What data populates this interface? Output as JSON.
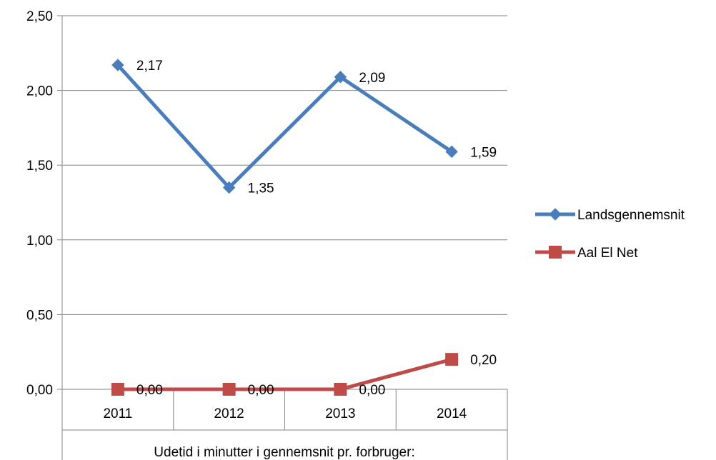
{
  "chart_data": {
    "type": "line",
    "categories": [
      "2011",
      "2012",
      "2013",
      "2014"
    ],
    "series": [
      {
        "name": "Landsgennemsnit",
        "color": "#4a7ebb",
        "marker": "diamond",
        "values": [
          2.17,
          1.35,
          2.09,
          1.59
        ],
        "labels": [
          "2,17",
          "1,35",
          "2,09",
          "1,59"
        ]
      },
      {
        "name": "Aal El Net",
        "color": "#be4b48",
        "marker": "square",
        "values": [
          0.0,
          0.0,
          0.0,
          0.2
        ],
        "labels": [
          "0,00",
          "0,00",
          "0,00",
          "0,20"
        ]
      }
    ],
    "y_ticks": [
      0.0,
      0.5,
      1.0,
      1.5,
      2.0,
      2.5
    ],
    "y_tick_labels": [
      "0,00",
      "0,50",
      "1,00",
      "1,50",
      "2,00",
      "2,50"
    ],
    "ylim": [
      0,
      2.5
    ],
    "xlabel": "Udetid i minutter i gennemsnit pr. forbruger:",
    "ylabel": "",
    "title": "",
    "grid": true,
    "legend_position": "right"
  }
}
